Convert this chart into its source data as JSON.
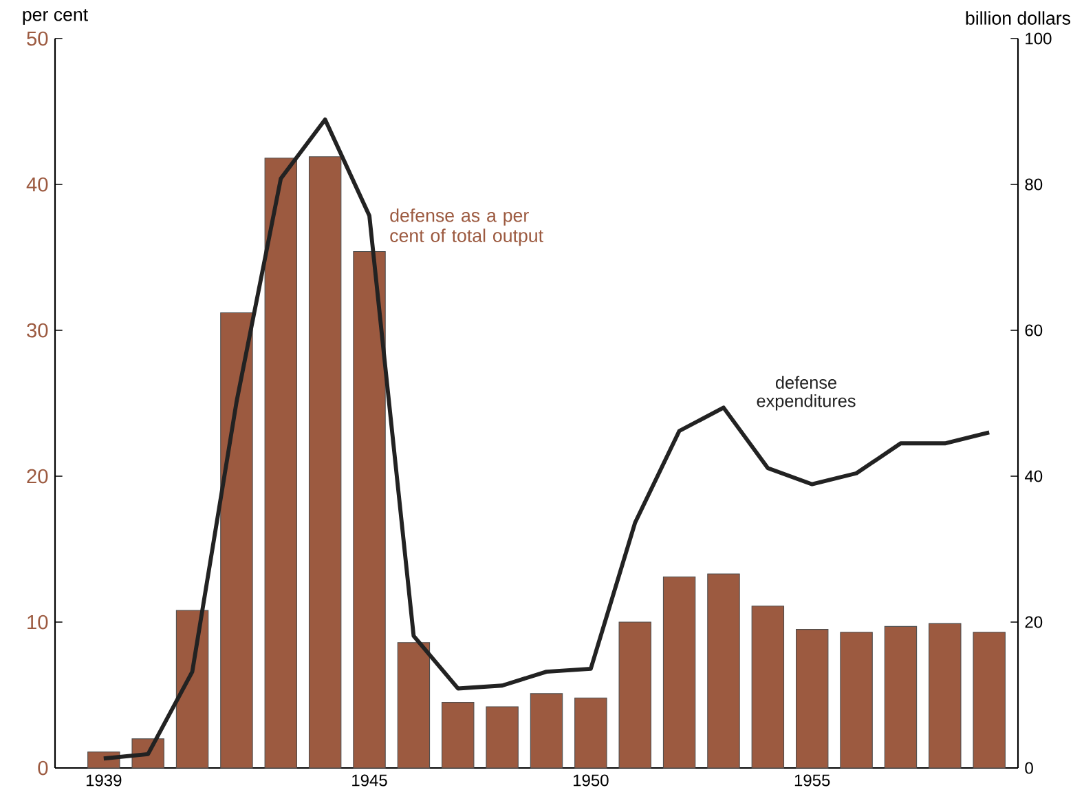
{
  "chart_data": {
    "type": "bar",
    "x": [
      1939,
      1940,
      1941,
      1942,
      1943,
      1944,
      1945,
      1946,
      1947,
      1948,
      1949,
      1950,
      1951,
      1952,
      1953,
      1954,
      1955,
      1956,
      1957,
      1958,
      1959
    ],
    "series": [
      {
        "name": "defense as a per cent of total output",
        "color": "#9c5a40",
        "values": [
          1.1,
          2.0,
          10.8,
          31.2,
          41.8,
          41.9,
          35.4,
          8.6,
          4.5,
          4.2,
          5.1,
          4.8,
          10.0,
          13.1,
          13.3,
          11.1,
          9.5,
          9.3,
          9.7,
          9.9,
          9.3
        ]
      },
      {
        "name": "defense expenditures",
        "type": "line",
        "axis": "y2",
        "color": "#222222",
        "values": [
          1.3,
          1.9,
          13.2,
          50.2,
          80.8,
          88.9,
          75.7,
          18.1,
          10.9,
          11.3,
          13.2,
          13.6,
          33.6,
          46.2,
          49.4,
          41.1,
          38.9,
          40.4,
          44.5,
          44.5,
          46.0
        ]
      }
    ],
    "ylabel": "per cent",
    "y2label": "billion dollars",
    "xlim": [
      1937.9,
      1959.65
    ],
    "xticks": [
      1939,
      1945,
      1950,
      1955
    ],
    "ylim": [
      0,
      50
    ],
    "yticks": [
      0,
      10,
      20,
      30,
      40,
      50
    ],
    "y2lim": [
      0,
      100
    ],
    "y2ticks": [
      0,
      20,
      40,
      60,
      80,
      100
    ],
    "grid": false,
    "marker": "none",
    "line_style": "solid"
  }
}
